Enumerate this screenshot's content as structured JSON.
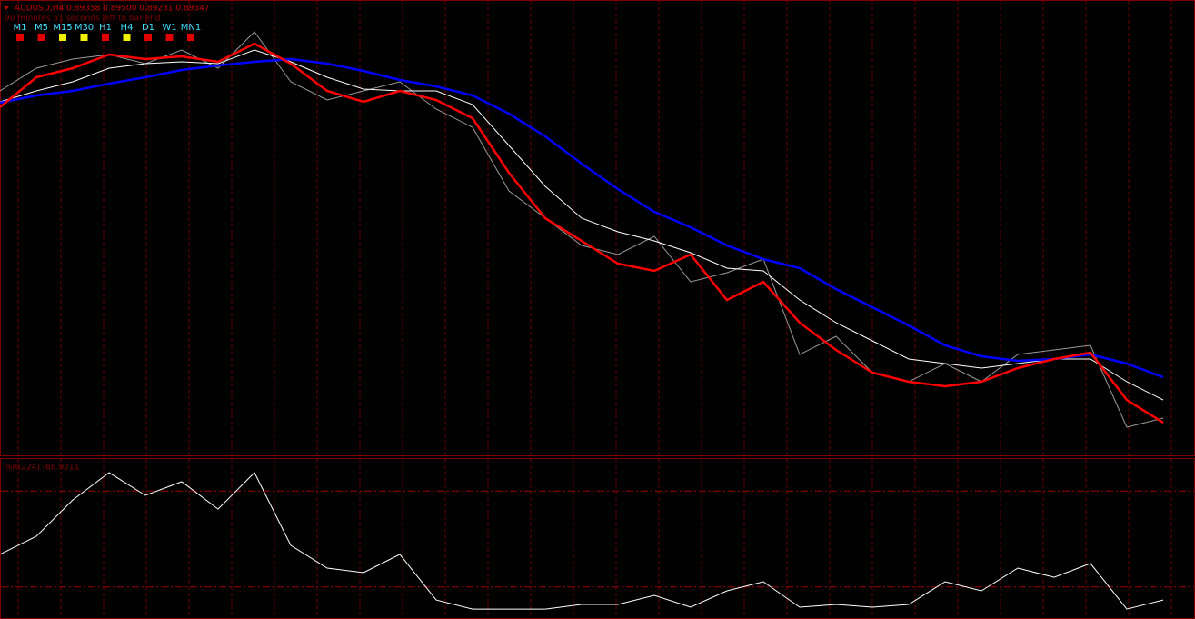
{
  "chart_data": {
    "type": "line",
    "title": "AUDUSD,H4  0.89358 0.89500 0.89231 0.89347",
    "subtitle": "90 minutes 51 seconds left to bar end",
    "timeframes": [
      {
        "label": "M1",
        "color": "#e00000"
      },
      {
        "label": "M5",
        "color": "#e00000"
      },
      {
        "label": "M15",
        "color": "#f0f000"
      },
      {
        "label": "M30",
        "color": "#f0f000"
      },
      {
        "label": "H1",
        "color": "#e00000"
      },
      {
        "label": "H4",
        "color": "#f0f000"
      },
      {
        "label": "D1",
        "color": "#e00000"
      },
      {
        "label": "W1",
        "color": "#e00000"
      },
      {
        "label": "MN1",
        "color": "#e00000"
      }
    ],
    "ylim": [
      0.88997,
      0.94017
    ],
    "series": [
      {
        "color": "#9a9a9a",
        "values": [
          0.93017,
          0.93267,
          0.93367,
          0.93417,
          0.93317,
          0.93467,
          0.93267,
          0.93667,
          0.93117,
          0.92917,
          0.93017,
          0.93117,
          0.92817,
          0.92617,
          0.91917,
          0.91617,
          0.91317,
          0.91217,
          0.91417,
          0.90917,
          0.91017,
          0.91167,
          0.90117,
          0.90317,
          0.89917,
          0.89817,
          0.90017,
          0.89817,
          0.90117,
          0.90167,
          0.90217,
          0.89317,
          0.89417
        ]
      },
      {
        "color": "#ffffff",
        "values": [
          0.92897,
          0.93017,
          0.93117,
          0.93267,
          0.93317,
          0.93337,
          0.93317,
          0.93467,
          0.93337,
          0.93167,
          0.93037,
          0.93017,
          0.93017,
          0.92867,
          0.92417,
          0.91967,
          0.91617,
          0.91467,
          0.91367,
          0.91237,
          0.91067,
          0.91037,
          0.90717,
          0.90467,
          0.90267,
          0.90067,
          0.90017,
          0.89967,
          0.90017,
          0.90067,
          0.90067,
          0.89817,
          0.89617
        ]
      },
      {
        "color": "#0000ff",
        "values": [
          0.92887,
          0.92967,
          0.93017,
          0.93097,
          0.93167,
          0.93247,
          0.93297,
          0.93337,
          0.93367,
          0.93317,
          0.93237,
          0.93137,
          0.93067,
          0.92967,
          0.92767,
          0.92517,
          0.92217,
          0.91937,
          0.91687,
          0.91517,
          0.91317,
          0.91167,
          0.91067,
          0.90837,
          0.90637,
          0.90437,
          0.90217,
          0.90097,
          0.90047,
          0.90067,
          0.90117,
          0.90017,
          0.89867
        ]
      },
      {
        "color": "#ff0000",
        "values": [
          0.92837,
          0.93167,
          0.93267,
          0.93417,
          0.93367,
          0.93397,
          0.93337,
          0.93537,
          0.93317,
          0.93017,
          0.92897,
          0.93017,
          0.92917,
          0.92717,
          0.92117,
          0.91617,
          0.91367,
          0.91117,
          0.91037,
          0.91217,
          0.90717,
          0.90917,
          0.90467,
          0.90167,
          0.89917,
          0.89817,
          0.89767,
          0.89817,
          0.89967,
          0.90067,
          0.90137,
          0.89617,
          0.89367
        ]
      }
    ],
    "indicator": {
      "label": "%R(224) -88.9211",
      "color": "#ffffff",
      "ylim": [
        -100,
        0
      ],
      "levels": [
        -20,
        -80
      ],
      "values": [
        -59.6,
        -48.3,
        -25.6,
        -8.5,
        -22.7,
        -14.2,
        -31.3,
        -8.5,
        -54.0,
        -68.2,
        -71.0,
        -59.6,
        -88.1,
        -93.8,
        -93.8,
        -93.8,
        -90.9,
        -90.9,
        -85.2,
        -92.6,
        -82.4,
        -76.7,
        -92.6,
        -90.9,
        -92.6,
        -90.9,
        -76.7,
        -82.4,
        -68.2,
        -73.9,
        -65.3,
        -93.8,
        -88.1
      ]
    }
  }
}
